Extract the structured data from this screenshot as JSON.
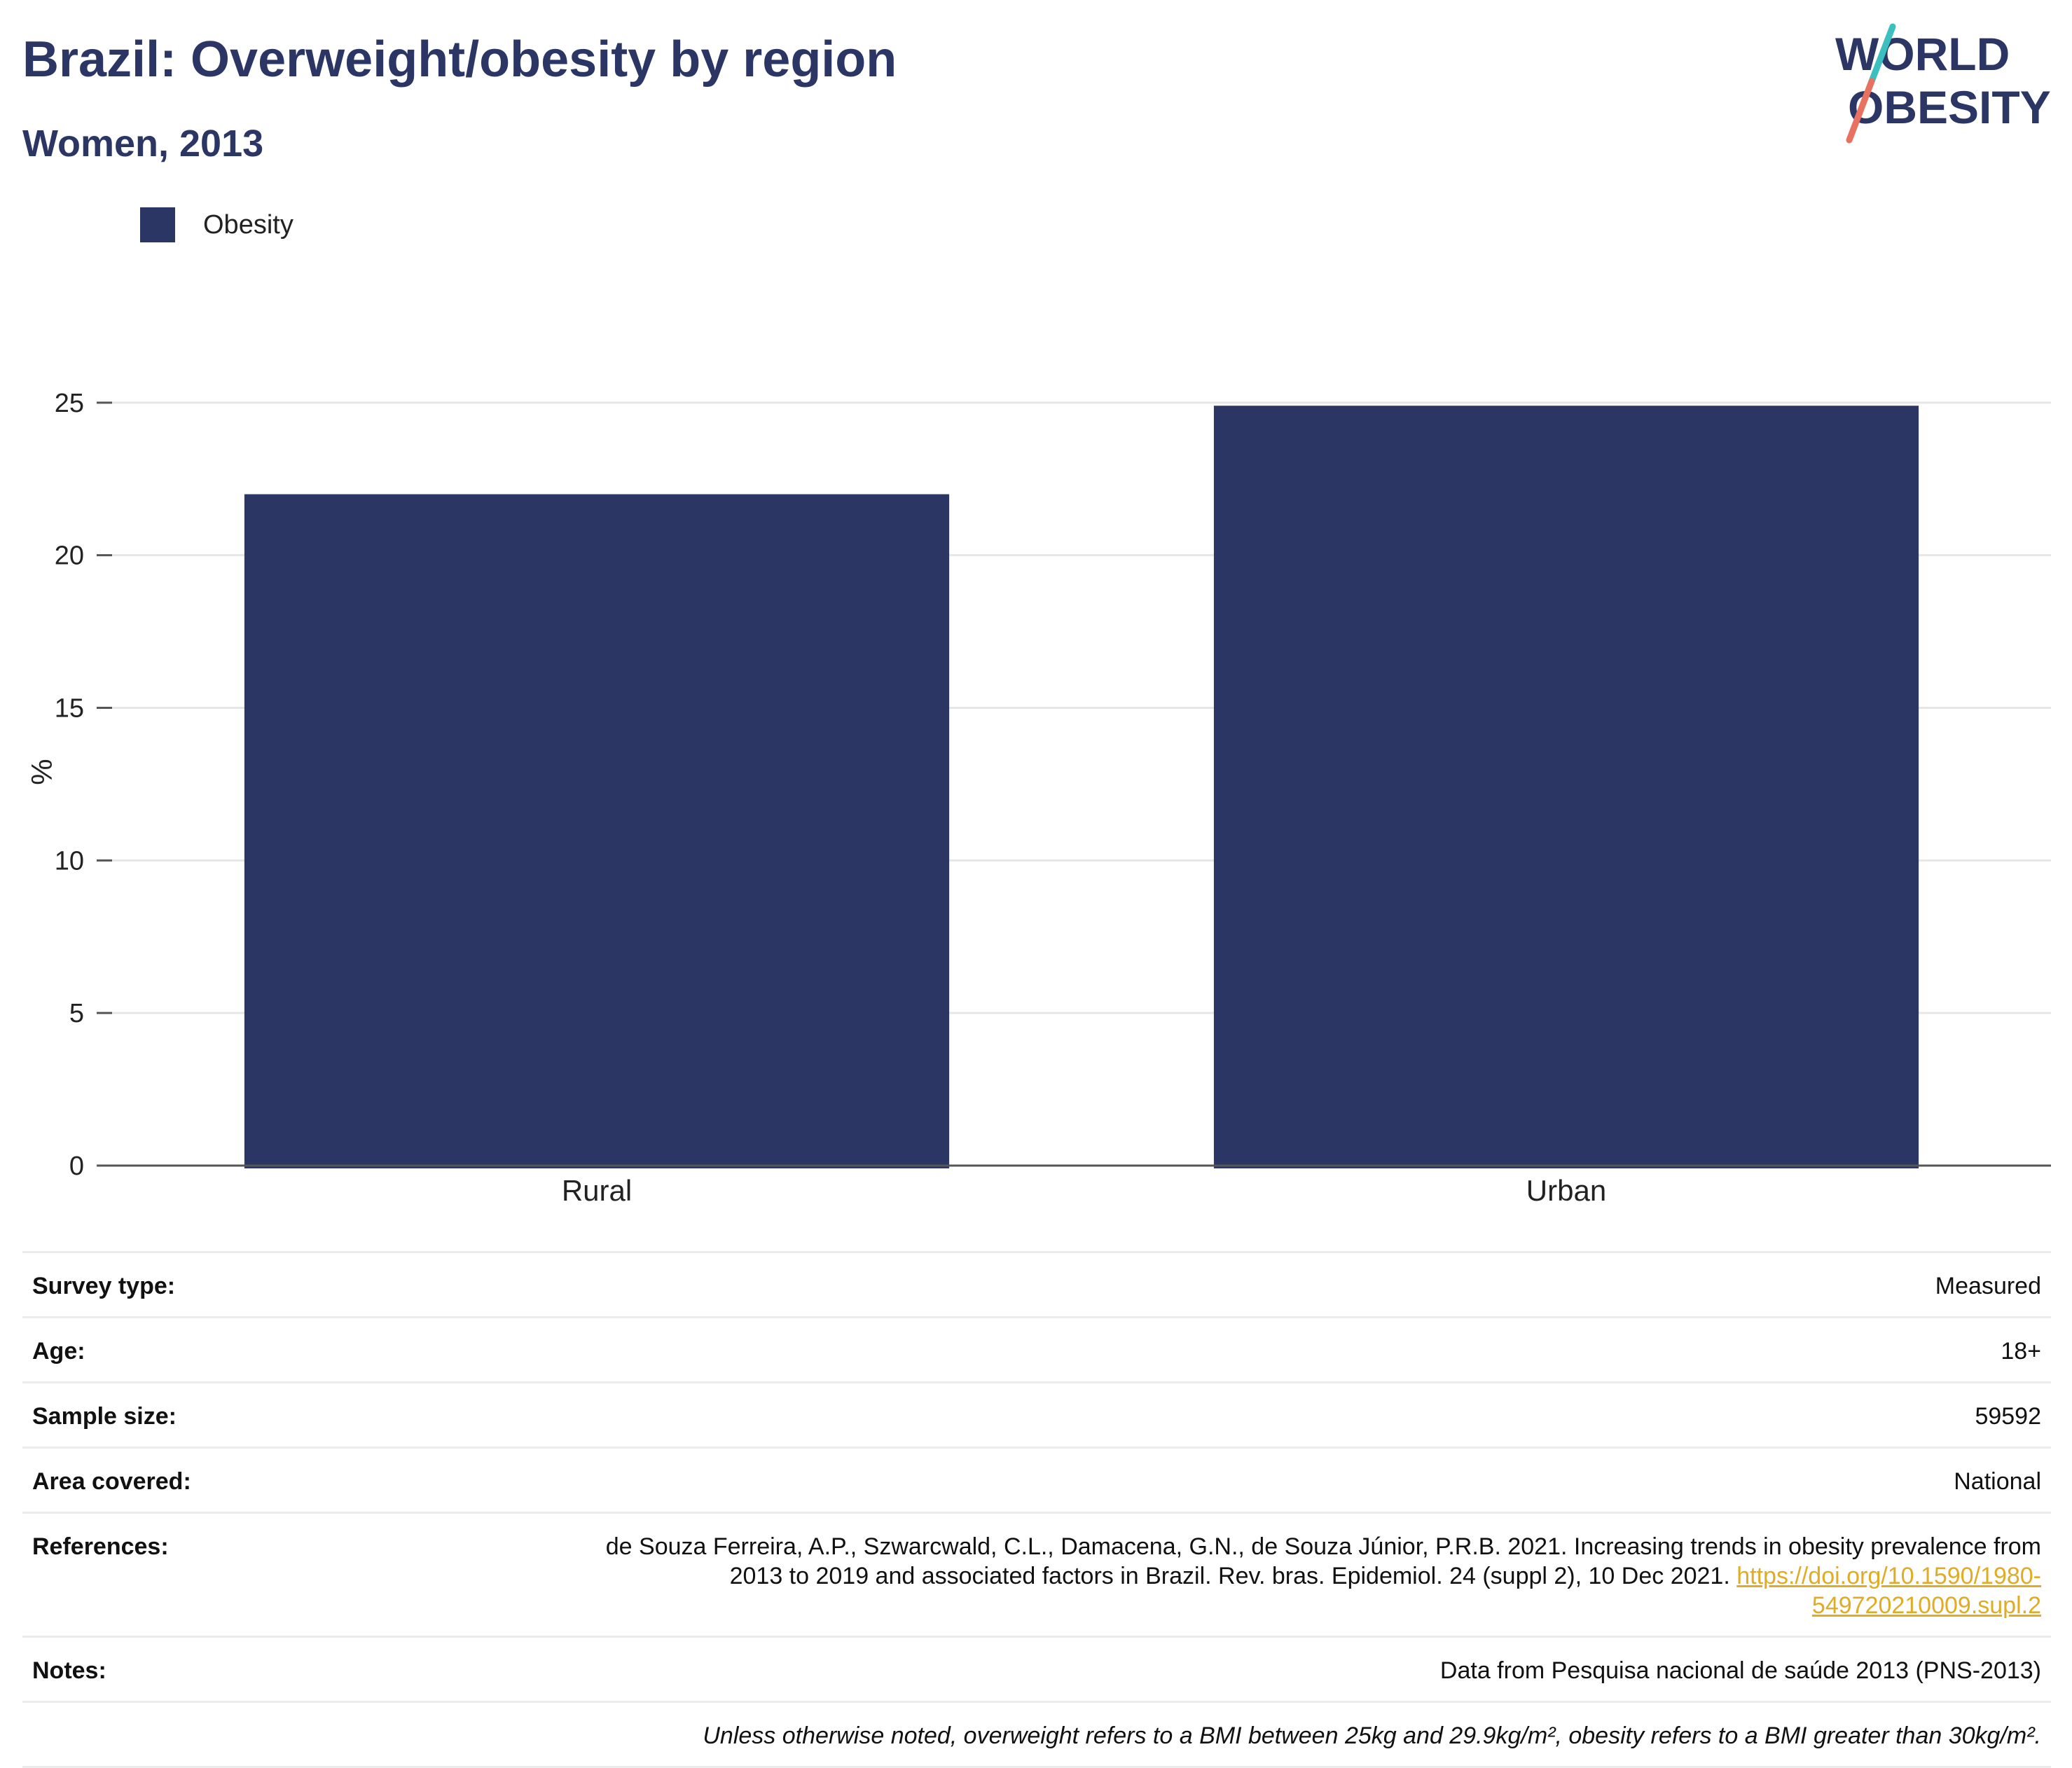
{
  "header": {
    "title": "Brazil: Overweight/obesity by region",
    "subtitle": "Women, 2013",
    "logo_line1": "WORLD",
    "logo_line2": "OBESITY"
  },
  "colors": {
    "title": "#2b3664",
    "bar": "#2b3664",
    "link": "#e0ac26",
    "logo_teal": "#3bbfbf",
    "logo_coral": "#e8715f"
  },
  "chart_data": {
    "type": "bar",
    "categories": [
      "Rural",
      "Urban"
    ],
    "series": [
      {
        "name": "Obesity",
        "values": [
          22.0,
          24.9
        ]
      }
    ],
    "ylabel": "%",
    "xlabel": "",
    "ylim": [
      0,
      25
    ],
    "yticks": [
      0,
      5,
      10,
      15,
      20,
      25
    ],
    "grid": true,
    "legend": "top-left"
  },
  "info": {
    "survey_type_label": "Survey type:",
    "survey_type": "Measured",
    "age_label": "Age:",
    "age": "18+",
    "sample_size_label": "Sample size:",
    "sample_size": "59592",
    "area_label": "Area covered:",
    "area": "National",
    "references_label": "References:",
    "references_text": "de Souza Ferreira, A.P., Szwarcwald, C.L., Damacena, G.N., de Souza Júnior, P.R.B. 2021. Increasing trends in obesity prevalence from 2013 to 2019 and associated factors in Brazil. Rev. bras. Epidemiol. 24 (suppl 2), 10 Dec 2021.",
    "references_link": "https://doi.org/10.1590/1980-549720210009.supl.2",
    "notes_label": "Notes:",
    "notes": "Data from Pesquisa nacional de saúde 2013 (PNS-2013)",
    "footnote": "Unless otherwise noted, overweight refers to a BMI between 25kg and 29.9kg/m², obesity refers to a BMI greater than 30kg/m²."
  }
}
